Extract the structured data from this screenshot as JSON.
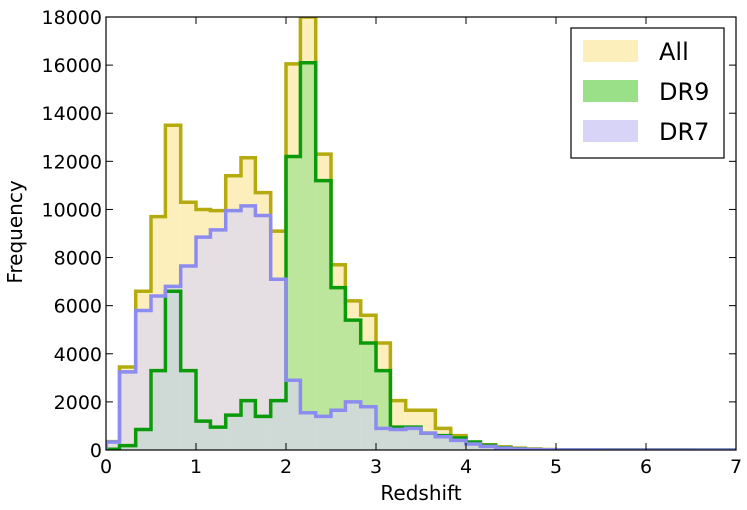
{
  "chart_data": {
    "type": "histogram",
    "xlabel": "Redshift",
    "ylabel": "Frequency",
    "xlim": [
      0,
      7
    ],
    "ylim": [
      0,
      18000
    ],
    "xticks": [
      "0",
      "1",
      "2",
      "3",
      "4",
      "5",
      "6",
      "7"
    ],
    "yticks": [
      "0",
      "2000",
      "4000",
      "6000",
      "8000",
      "10000",
      "12000",
      "14000",
      "16000",
      "18000"
    ],
    "grid": false,
    "legend_placement": "top-right",
    "bin_edges": [
      0.0,
      0.15,
      0.33,
      0.5,
      0.66,
      0.83,
      1.0,
      1.16,
      1.33,
      1.5,
      1.66,
      1.83,
      2.0,
      2.16,
      2.33,
      2.5,
      2.66,
      2.83,
      3.0,
      3.16,
      3.33,
      3.5,
      3.66,
      3.83,
      4.0,
      4.16,
      4.33,
      4.5,
      4.66,
      4.83,
      5.0,
      5.5,
      6.0,
      6.5,
      7.0
    ],
    "series": [
      {
        "name": "All",
        "fill": "#fdefbc",
        "stroke": "#b5aa0e",
        "values": [
          350,
          3450,
          6600,
          9700,
          13500,
          10300,
          10000,
          9950,
          11400,
          12150,
          10700,
          9100,
          16050,
          18000,
          12300,
          7700,
          6200,
          5600,
          4450,
          2050,
          1650,
          1650,
          900,
          600,
          300,
          220,
          130,
          80,
          40,
          20,
          10,
          5,
          3,
          2
        ]
      },
      {
        "name": "DR9",
        "fill": "#99e088",
        "stroke": "#0a9a0a",
        "values": [
          30,
          180,
          850,
          3300,
          6600,
          3300,
          1200,
          950,
          1450,
          2050,
          1400,
          2050,
          12200,
          16100,
          11200,
          6750,
          5400,
          4450,
          3300,
          950,
          950,
          700,
          600,
          500,
          330,
          200,
          100,
          50,
          20,
          10,
          5,
          2,
          1,
          1
        ]
      },
      {
        "name": "DR7",
        "fill": "#d8d4f8",
        "stroke": "#8c8cf0",
        "values": [
          330,
          3250,
          5800,
          6400,
          6800,
          7650,
          8850,
          9150,
          9950,
          10150,
          9750,
          7100,
          2900,
          1550,
          1400,
          1650,
          2000,
          1800,
          900,
          850,
          900,
          700,
          550,
          400,
          250,
          150,
          80,
          40,
          20,
          10,
          5,
          2,
          1,
          1
        ]
      }
    ]
  }
}
